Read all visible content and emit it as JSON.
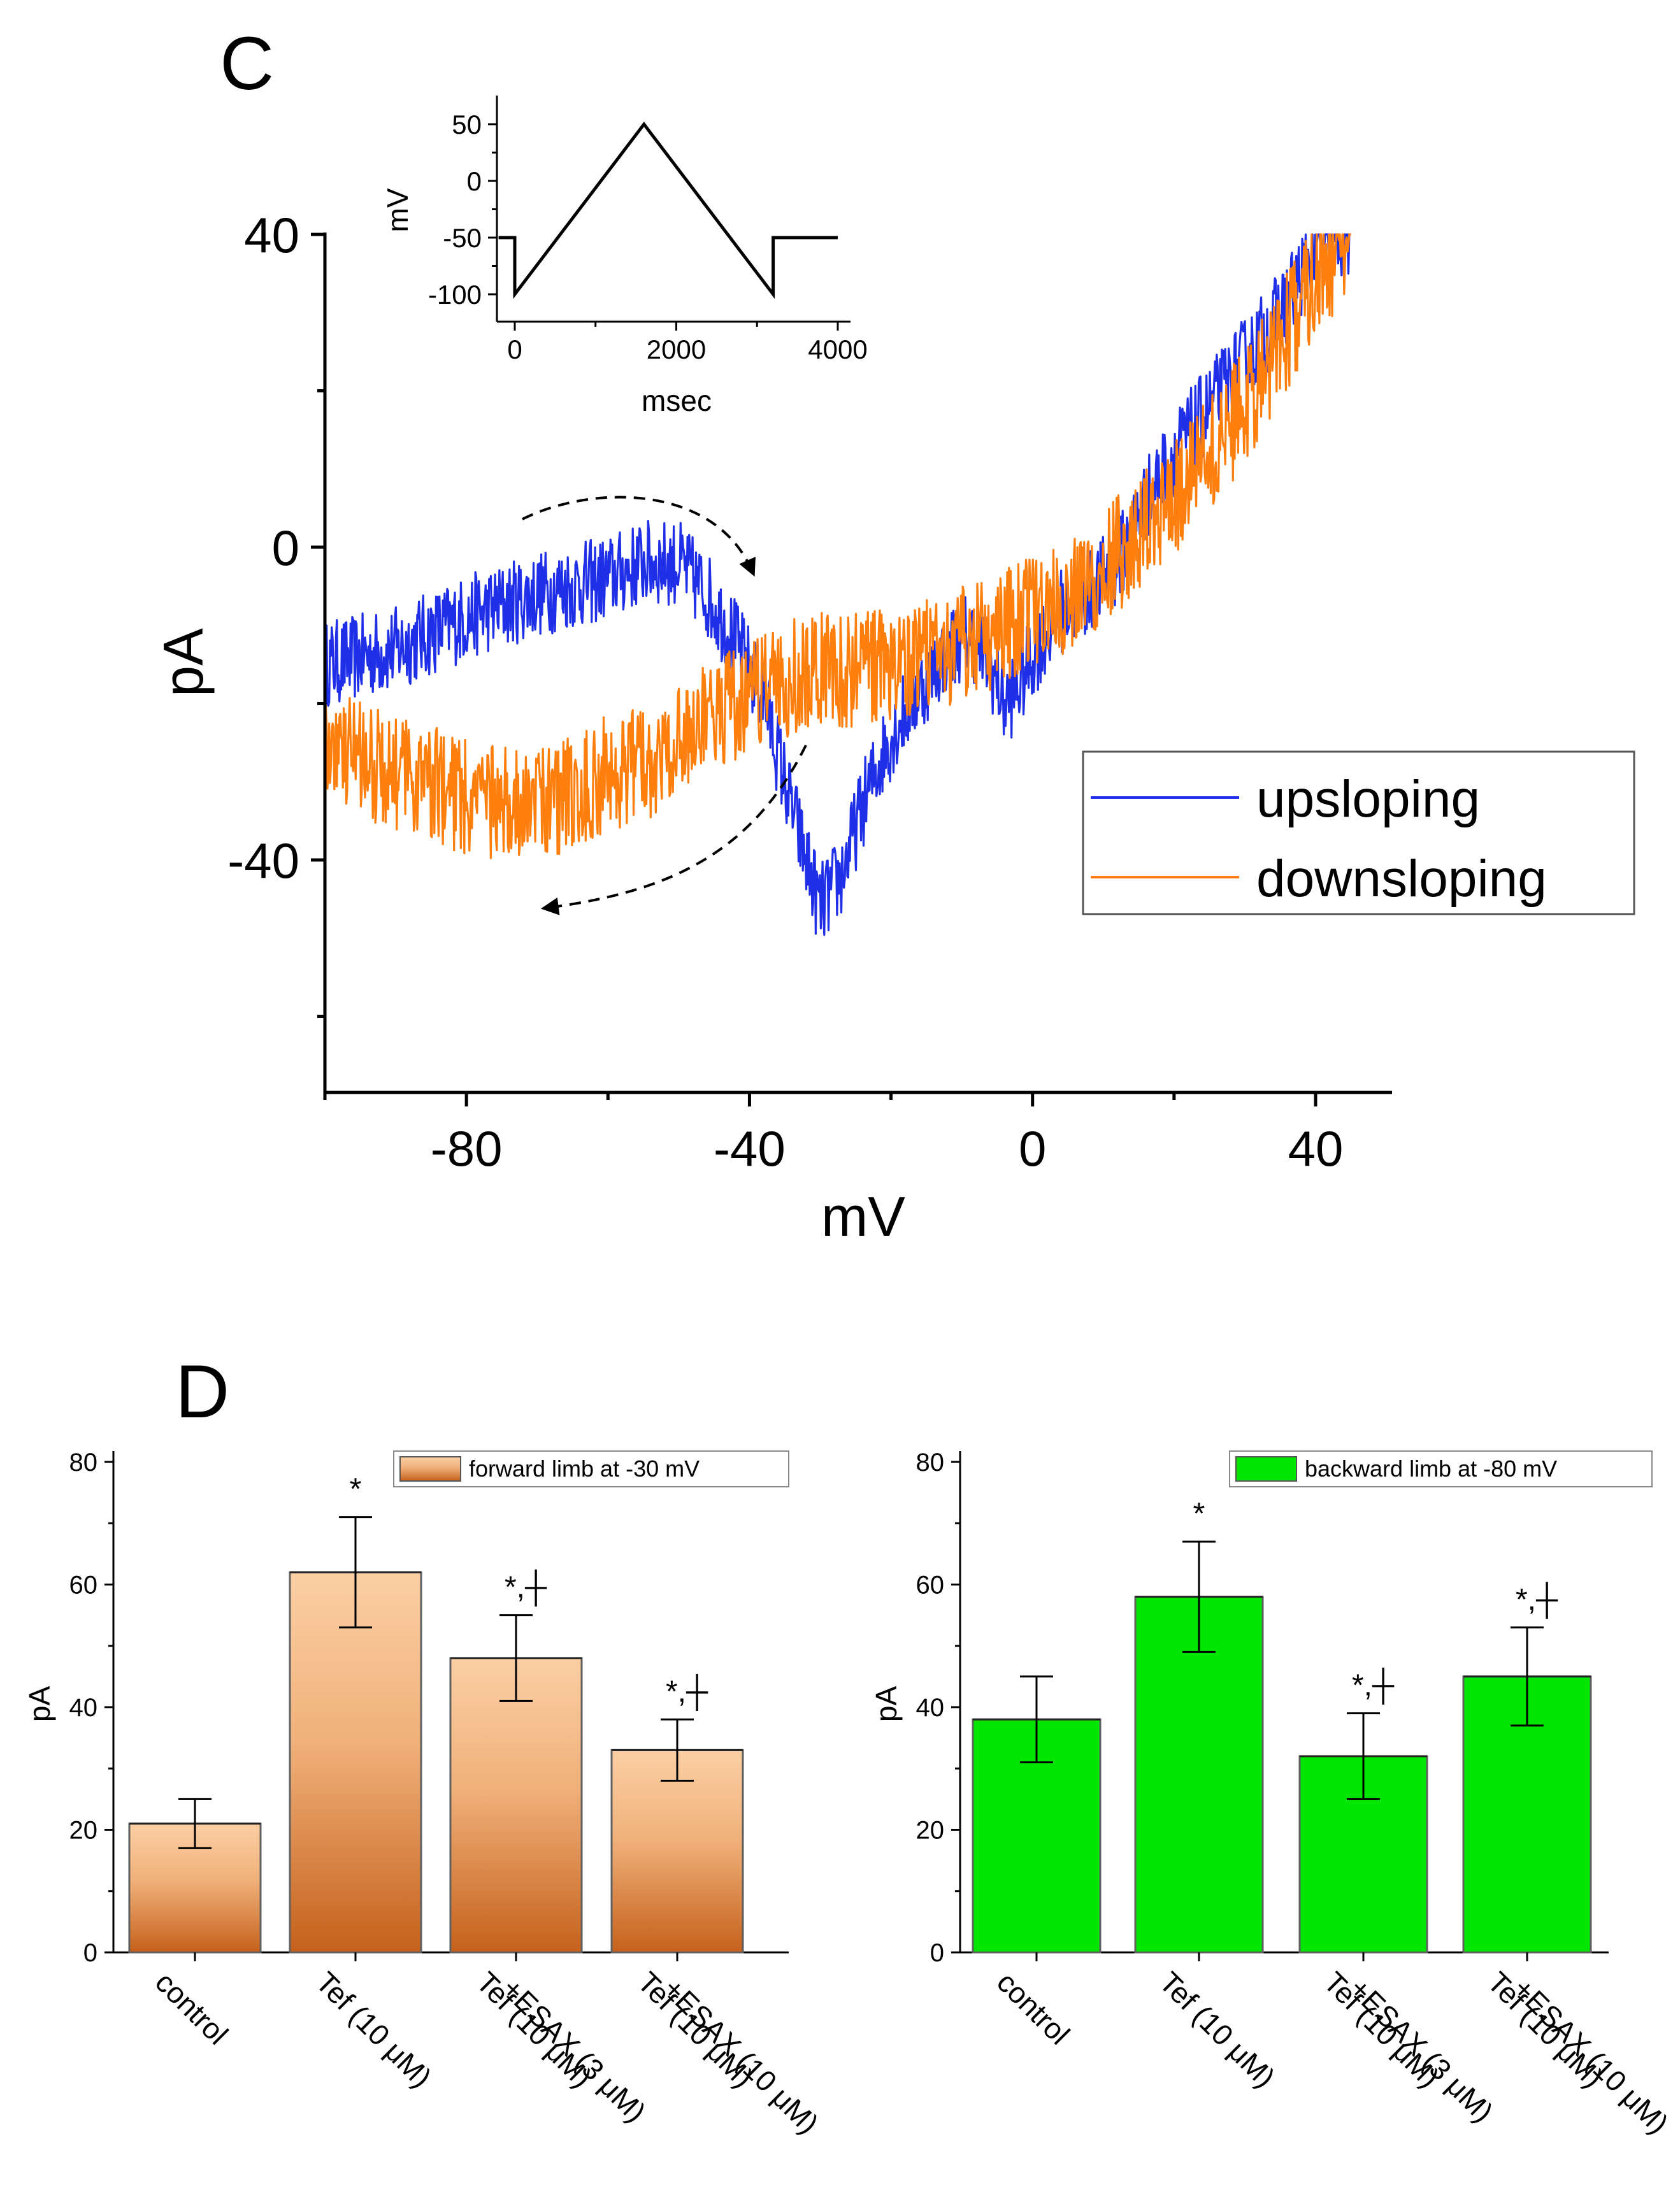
{
  "panels": {
    "c_letter": "C",
    "d_letter": "D"
  },
  "chart_data": [
    {
      "id": "iv",
      "type": "line",
      "xlabel": "mV",
      "ylabel": "pA",
      "xlim": [
        -100,
        50
      ],
      "ylim": [
        -70,
        40
      ],
      "x_ticks": [
        -80,
        -40,
        0,
        40
      ],
      "y_ticks": [
        40,
        0,
        -40
      ],
      "legend": {
        "placement": "right",
        "entries": [
          "upsloping",
          "downsloping"
        ]
      },
      "series": [
        {
          "name": "upsloping",
          "color": "#1f2fe8",
          "x": [
            -100,
            -90,
            -80,
            -70,
            -60,
            -55,
            -50,
            -46,
            -42,
            -38,
            -35,
            -32,
            -30,
            -27,
            -24,
            -21,
            -18,
            -15,
            -12,
            -9,
            -6,
            -4,
            -2,
            0,
            4,
            8,
            12,
            16,
            20,
            25,
            30,
            35,
            38,
            40,
            45
          ],
          "y": [
            -15,
            -13,
            -9,
            -6,
            -4,
            -2,
            -2,
            -6,
            -12,
            -19,
            -30,
            -40,
            -46,
            -42,
            -33,
            -26,
            -21,
            -17,
            -13,
            -11,
            -15,
            -20,
            -18,
            -14,
            -8,
            -6,
            -2,
            6,
            12,
            18,
            24,
            30,
            35,
            38,
            40
          ]
        },
        {
          "name": "downsloping",
          "color": "#ff7f0e",
          "x": [
            -100,
            -95,
            -90,
            -85,
            -80,
            -75,
            -70,
            -65,
            -60,
            -55,
            -50,
            -45,
            -40,
            -35,
            -30,
            -25,
            -20,
            -15,
            -10,
            -5,
            0,
            5,
            10,
            15,
            20,
            25,
            30,
            35,
            40,
            45
          ],
          "y": [
            -25,
            -27,
            -29,
            -30,
            -32,
            -33,
            -33,
            -31,
            -29,
            -28,
            -24,
            -22,
            -19,
            -17,
            -15,
            -16,
            -15,
            -14,
            -12,
            -11,
            -8,
            -6,
            -3,
            2,
            6,
            12,
            18,
            26,
            34,
            40
          ]
        }
      ]
    },
    {
      "id": "inset",
      "type": "line",
      "xlabel": "msec",
      "ylabel": "mV",
      "xlim": [
        0,
        4000
      ],
      "ylim": [
        -100,
        50
      ],
      "x_ticks": [
        0,
        2000,
        4000
      ],
      "y_ticks": [
        50,
        0,
        -50,
        -100
      ],
      "series": [
        {
          "color": "#000000",
          "x": [
            -200,
            0,
            0,
            1600,
            3200,
            3200,
            4000
          ],
          "y": [
            -50,
            -50,
            -100,
            50,
            -100,
            -50,
            -50
          ]
        }
      ]
    },
    {
      "id": "forward",
      "type": "bar",
      "ylabel": "pA",
      "ylim": [
        0,
        80
      ],
      "y_ticks": [
        0,
        20,
        40,
        60,
        80
      ],
      "categories": [
        "control",
        "Tef (10 μM)",
        "Tef (10 μM)\n+ESAX (3 μM)",
        "Tef (10 μM)\n+ESAX (10 μM)"
      ],
      "values": [
        21,
        62,
        48,
        33
      ],
      "errors": [
        4,
        9,
        7,
        5
      ],
      "annotations": [
        "",
        "*",
        "*,┼",
        "*,┼"
      ],
      "legend": {
        "placement": "top-right",
        "entries": [
          "forward limb at -30 mV"
        ]
      },
      "colors": {
        "top": "#fbcfa4",
        "bottom": "#c5611c"
      }
    },
    {
      "id": "backward",
      "type": "bar",
      "ylabel": "pA",
      "ylim": [
        0,
        80
      ],
      "y_ticks": [
        0,
        20,
        40,
        60,
        80
      ],
      "categories": [
        "control",
        "Tef (10 μM)",
        "Tef (10 μM)\n+ESAX (3 μM)",
        "Tef (10 μM)\n+ESAX (10 μM)"
      ],
      "values": [
        38,
        58,
        32,
        45
      ],
      "errors": [
        7,
        9,
        7,
        8
      ],
      "annotations": [
        "",
        "*",
        "*,┼",
        "*,┼"
      ],
      "legend": {
        "placement": "top-right",
        "entries": [
          "backward limb at -80 mV"
        ]
      },
      "colors": {
        "fill": "#00e600"
      }
    }
  ]
}
